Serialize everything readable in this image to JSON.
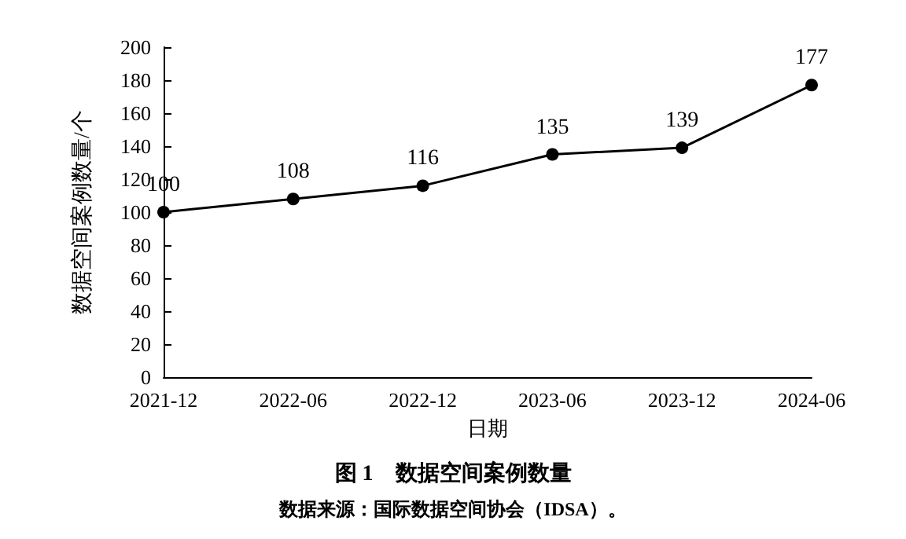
{
  "chart_data": {
    "type": "line",
    "title": "图 1　数据空间案例数量",
    "xlabel": "日期",
    "ylabel": "数据空间案例数量/个",
    "annotations": [
      "数据来源：国际数据空间协会（IDSA）。"
    ],
    "categories": [
      "2021-12",
      "2022-06",
      "2022-12",
      "2023-06",
      "2023-12",
      "2024-06"
    ],
    "series": [
      {
        "color": "#000000",
        "values": [
          100,
          108,
          116,
          135,
          139,
          177
        ]
      }
    ],
    "ylim": [
      0,
      200
    ],
    "yticks": [
      0,
      20,
      40,
      60,
      80,
      100,
      120,
      140,
      160,
      180,
      200
    ],
    "data_labels": true,
    "marker": "circle",
    "line_style": "solid"
  }
}
